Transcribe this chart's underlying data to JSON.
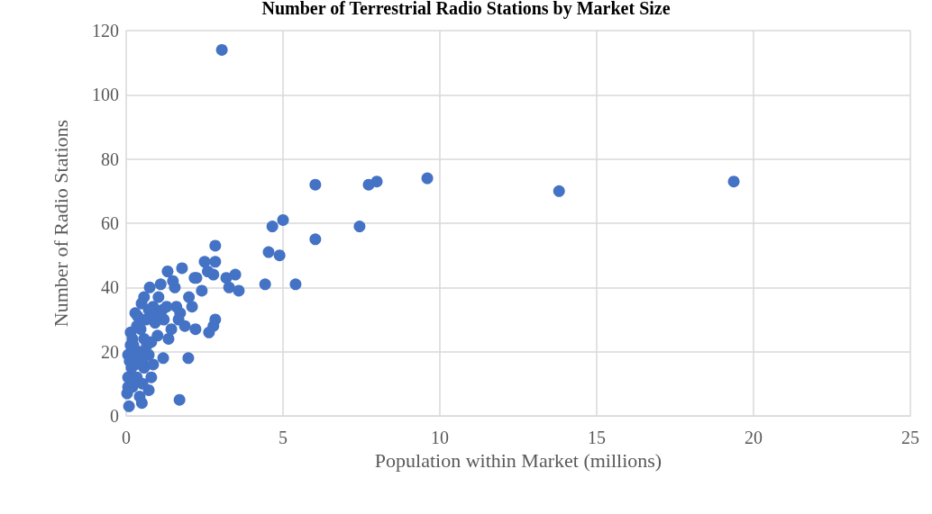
{
  "chart_data": {
    "type": "scatter",
    "title": "Number of Terrestrial Radio Stations by Market Size",
    "xlabel": "Population within Market (millions)",
    "ylabel": "Number of Radio Stations",
    "color": "#4472c4",
    "marker": "circle",
    "grid": true,
    "xlim": [
      0,
      25
    ],
    "xticks": [
      0,
      5,
      10,
      15,
      20,
      25
    ],
    "ylim": [
      0,
      120
    ],
    "yticks": [
      0,
      20,
      40,
      60,
      80,
      100,
      120
    ],
    "x": [
      3.05,
      19.37,
      13.8,
      9.6,
      7.99,
      7.73,
      6.03,
      6.03,
      5.0,
      4.66,
      7.44,
      4.54,
      4.89,
      5.4,
      4.43,
      2.84,
      2.84,
      2.5,
      2.6,
      2.78,
      3.48,
      3.19,
      3.28,
      3.59,
      2.24,
      2.18,
      2.41,
      1.78,
      1.32,
      2.84,
      2.78,
      2.64,
      2.21,
      1.98,
      1.7,
      1.18,
      1.35,
      1.0,
      2.0,
      2.1,
      1.49,
      1.55,
      1.6,
      1.72,
      1.87,
      1.67,
      0.09,
      0.5,
      0.75,
      1.1,
      0.86,
      0.57,
      0.29,
      0.14,
      0.06,
      0.06,
      0.03,
      0.2,
      0.43,
      0.72,
      0.8,
      0.57,
      0.29,
      0.14,
      0.43,
      0.72,
      0.57,
      0.34,
      0.63,
      0.92,
      1.15,
      1.03,
      0.8,
      0.86,
      0.34,
      0.17,
      0.52,
      0.2,
      0.11,
      0.29,
      0.46,
      0.72,
      1.29,
      1.2,
      1.44,
      0.89,
      0.06,
      0.23,
      0.52,
      0.66,
      0.37,
      0.49
    ],
    "values": [
      114,
      73,
      70,
      74,
      73,
      72,
      72,
      55,
      61,
      59,
      59,
      51,
      50,
      41,
      41,
      53,
      48,
      48,
      45,
      44,
      44,
      43,
      40,
      39,
      43,
      43,
      39,
      46,
      45,
      30,
      28,
      26,
      27,
      18,
      5,
      18,
      24,
      25,
      37,
      34,
      42,
      40,
      34,
      32,
      28,
      30,
      3,
      4,
      40,
      41,
      34,
      37,
      32,
      26,
      19,
      12,
      7,
      9,
      6,
      8,
      12,
      15,
      16,
      22,
      20,
      19,
      24,
      28,
      30,
      29,
      33,
      37,
      23,
      16,
      12,
      15,
      10,
      24,
      17,
      19,
      27,
      33,
      34,
      30,
      27,
      31,
      9,
      22,
      17,
      22,
      31,
      35
    ]
  }
}
